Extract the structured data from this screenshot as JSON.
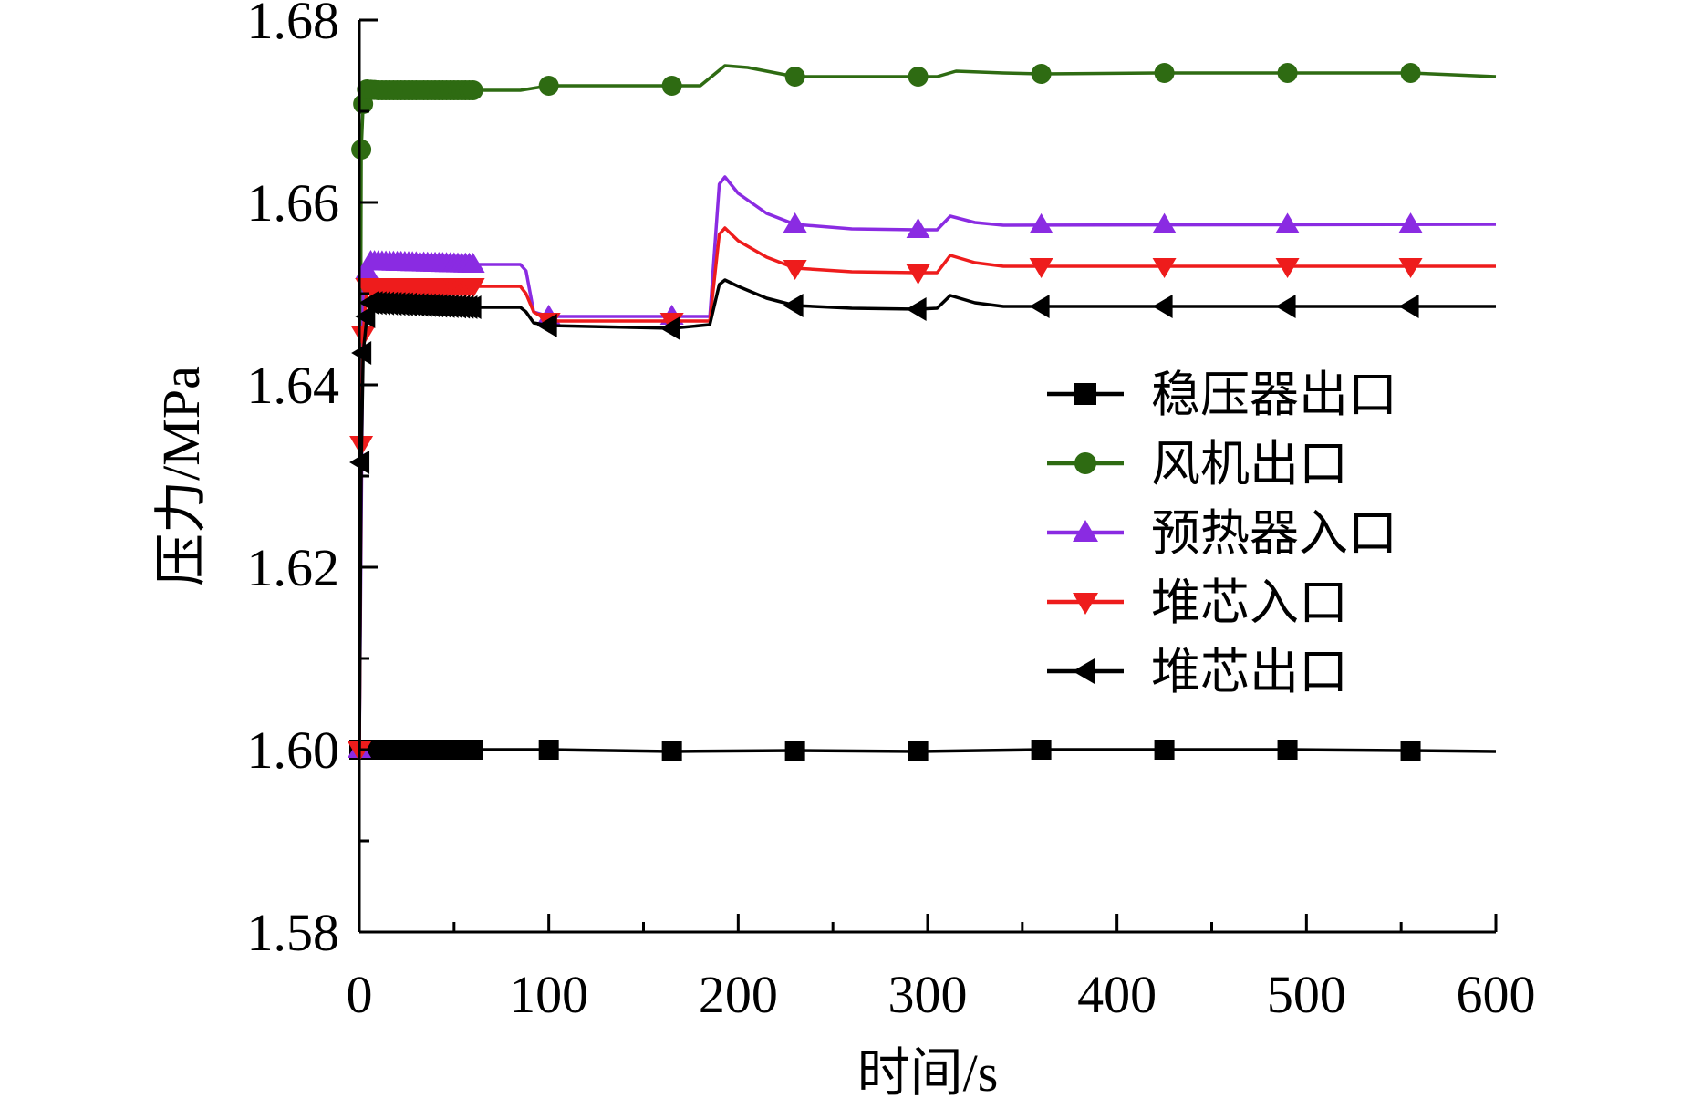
{
  "chart_data": {
    "type": "line",
    "xlabel": "时间/s",
    "ylabel": "压力/MPa",
    "xlim": [
      0,
      600
    ],
    "ylim": [
      1.58,
      1.68
    ],
    "xticks": [
      0,
      100,
      200,
      300,
      400,
      500,
      600
    ],
    "yticks": [
      1.58,
      1.6,
      1.62,
      1.64,
      1.66,
      1.68
    ],
    "xtick_labels": [
      "0",
      "100",
      "200",
      "300",
      "400",
      "500",
      "600"
    ],
    "ytick_labels": [
      "1.58",
      "1.60",
      "1.62",
      "1.64",
      "1.66",
      "1.68"
    ],
    "grid": false,
    "legend_position": "right",
    "series": [
      {
        "name": "稳压器出口",
        "color": "#000000",
        "marker": "square",
        "points": [
          [
            0,
            1.6
          ],
          [
            5,
            1.6
          ],
          [
            60,
            1.6
          ],
          [
            100,
            1.6
          ],
          [
            165,
            1.5998
          ],
          [
            230,
            1.5999
          ],
          [
            295,
            1.5998
          ],
          [
            360,
            1.6
          ],
          [
            425,
            1.6
          ],
          [
            490,
            1.6
          ],
          [
            555,
            1.5999
          ],
          [
            600,
            1.5998
          ]
        ],
        "markers_x": [
          0,
          2,
          4,
          6,
          8,
          10,
          12,
          14,
          16,
          18,
          20,
          22,
          24,
          26,
          28,
          30,
          32,
          34,
          36,
          38,
          40,
          42,
          44,
          46,
          48,
          50,
          52,
          54,
          56,
          58,
          60,
          100,
          165,
          230,
          295,
          360,
          425,
          490,
          555
        ]
      },
      {
        "name": "风机出口",
        "color": "#2e6b12",
        "marker": "circle",
        "points": [
          [
            0,
            1.6
          ],
          [
            1,
            1.6658
          ],
          [
            2,
            1.6708
          ],
          [
            4,
            1.6724
          ],
          [
            10,
            1.6723
          ],
          [
            60,
            1.6723
          ],
          [
            85,
            1.6723
          ],
          [
            100,
            1.6728
          ],
          [
            165,
            1.6728
          ],
          [
            180,
            1.6728
          ],
          [
            193,
            1.675
          ],
          [
            205,
            1.6748
          ],
          [
            230,
            1.6738
          ],
          [
            295,
            1.6738
          ],
          [
            305,
            1.6738
          ],
          [
            315,
            1.6744
          ],
          [
            340,
            1.6742
          ],
          [
            360,
            1.6741
          ],
          [
            425,
            1.6742
          ],
          [
            490,
            1.6742
          ],
          [
            555,
            1.6742
          ],
          [
            600,
            1.6738
          ]
        ],
        "markers_x": [
          1,
          2,
          4,
          6,
          8,
          10,
          12,
          14,
          16,
          18,
          20,
          22,
          24,
          26,
          28,
          30,
          32,
          34,
          36,
          38,
          40,
          42,
          44,
          46,
          48,
          50,
          52,
          54,
          56,
          58,
          60,
          100,
          165,
          230,
          295,
          360,
          425,
          490,
          555
        ]
      },
      {
        "name": "预热器入口",
        "color": "#8a2be2",
        "marker": "triangle-up",
        "points": [
          [
            0,
            1.6
          ],
          [
            2,
            1.6505
          ],
          [
            5,
            1.6535
          ],
          [
            60,
            1.6532
          ],
          [
            85,
            1.6532
          ],
          [
            88,
            1.6525
          ],
          [
            92,
            1.648
          ],
          [
            100,
            1.6475
          ],
          [
            165,
            1.6475
          ],
          [
            185,
            1.6475
          ],
          [
            190,
            1.662
          ],
          [
            193,
            1.6628
          ],
          [
            200,
            1.661
          ],
          [
            215,
            1.6588
          ],
          [
            230,
            1.6576
          ],
          [
            260,
            1.6571
          ],
          [
            295,
            1.657
          ],
          [
            305,
            1.657
          ],
          [
            312,
            1.6585
          ],
          [
            325,
            1.6578
          ],
          [
            340,
            1.6575
          ],
          [
            600,
            1.6576
          ]
        ],
        "markers_x": [
          0,
          4,
          6,
          8,
          10,
          12,
          14,
          16,
          18,
          20,
          22,
          24,
          26,
          28,
          30,
          32,
          34,
          36,
          38,
          40,
          42,
          44,
          46,
          48,
          50,
          52,
          54,
          56,
          58,
          60,
          100,
          165,
          230,
          295,
          360,
          425,
          490,
          555
        ]
      },
      {
        "name": "堆芯入口",
        "color": "#ee1c1c",
        "marker": "triangle-down",
        "points": [
          [
            0,
            1.6
          ],
          [
            1,
            1.6335
          ],
          [
            2,
            1.6455
          ],
          [
            4,
            1.6508
          ],
          [
            60,
            1.6508
          ],
          [
            85,
            1.6508
          ],
          [
            88,
            1.65
          ],
          [
            92,
            1.648
          ],
          [
            100,
            1.647
          ],
          [
            165,
            1.647
          ],
          [
            185,
            1.647
          ],
          [
            190,
            1.6565
          ],
          [
            193,
            1.6572
          ],
          [
            200,
            1.6558
          ],
          [
            215,
            1.654
          ],
          [
            230,
            1.6528
          ],
          [
            260,
            1.6524
          ],
          [
            295,
            1.6523
          ],
          [
            305,
            1.6523
          ],
          [
            312,
            1.6542
          ],
          [
            325,
            1.6534
          ],
          [
            340,
            1.653
          ],
          [
            600,
            1.653
          ]
        ],
        "markers_x": [
          0,
          1,
          2,
          4,
          6,
          8,
          10,
          12,
          14,
          16,
          18,
          20,
          22,
          24,
          26,
          28,
          30,
          32,
          34,
          36,
          38,
          40,
          42,
          44,
          46,
          48,
          50,
          52,
          54,
          56,
          58,
          60,
          100,
          165,
          230,
          295,
          360,
          425,
          490,
          555
        ]
      },
      {
        "name": "堆芯出口",
        "color": "#000000",
        "marker": "triangle-left",
        "points": [
          [
            0,
            1.6
          ],
          [
            1,
            1.6315
          ],
          [
            2,
            1.6435
          ],
          [
            4,
            1.6475
          ],
          [
            6,
            1.649
          ],
          [
            60,
            1.6485
          ],
          [
            85,
            1.6485
          ],
          [
            88,
            1.648
          ],
          [
            92,
            1.6468
          ],
          [
            100,
            1.6465
          ],
          [
            165,
            1.6462
          ],
          [
            185,
            1.6466
          ],
          [
            190,
            1.651
          ],
          [
            193,
            1.6515
          ],
          [
            200,
            1.6508
          ],
          [
            215,
            1.6495
          ],
          [
            230,
            1.6487
          ],
          [
            260,
            1.6484
          ],
          [
            295,
            1.6483
          ],
          [
            305,
            1.6484
          ],
          [
            312,
            1.6498
          ],
          [
            325,
            1.649
          ],
          [
            340,
            1.6486
          ],
          [
            600,
            1.6486
          ]
        ],
        "markers_x": [
          1,
          2,
          4,
          6,
          8,
          10,
          12,
          14,
          16,
          18,
          20,
          22,
          24,
          26,
          28,
          30,
          32,
          34,
          36,
          38,
          40,
          42,
          44,
          46,
          48,
          50,
          52,
          54,
          56,
          58,
          60,
          100,
          165,
          230,
          295,
          360,
          425,
          490,
          555
        ]
      }
    ]
  }
}
